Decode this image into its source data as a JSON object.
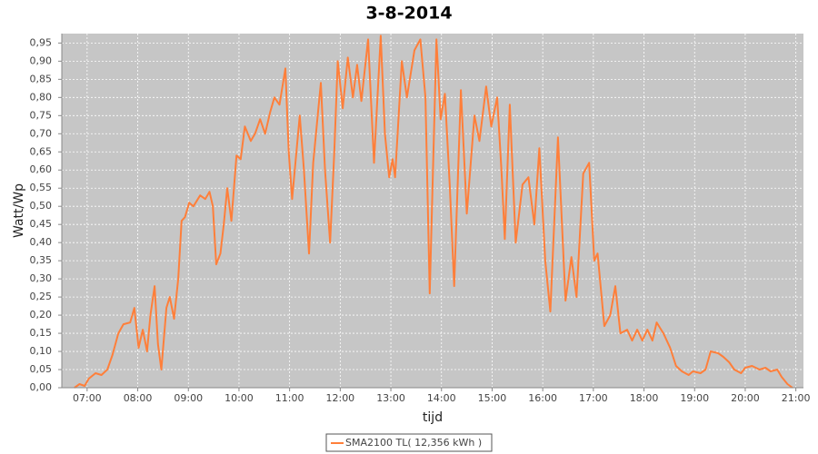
{
  "chart_data": {
    "type": "line",
    "title": "3-8-2014",
    "x_label": "tijd",
    "y_label": "Watt/Wp",
    "xlim": [
      "06:30",
      "21:09"
    ],
    "xticks": [
      "07:00",
      "08:00",
      "09:00",
      "10:00",
      "11:00",
      "12:00",
      "13:00",
      "14:00",
      "15:00",
      "16:00",
      "17:00",
      "18:00",
      "19:00",
      "20:00",
      "21:00"
    ],
    "ylim": [
      0,
      0.976
    ],
    "yticks": [
      {
        "value": 0,
        "label": "0,00"
      },
      {
        "value": 0.05,
        "label": "0,05"
      },
      {
        "value": 0.1,
        "label": "0,10"
      },
      {
        "value": 0.15,
        "label": "0,15"
      },
      {
        "value": 0.2,
        "label": "0,20"
      },
      {
        "value": 0.25,
        "label": "0,25"
      },
      {
        "value": 0.3,
        "label": "0,30"
      },
      {
        "value": 0.35,
        "label": "0,35"
      },
      {
        "value": 0.4,
        "label": "0,40"
      },
      {
        "value": 0.45,
        "label": "0,45"
      },
      {
        "value": 0.5,
        "label": "0,50"
      },
      {
        "value": 0.55,
        "label": "0,55"
      },
      {
        "value": 0.6,
        "label": "0,60"
      },
      {
        "value": 0.65,
        "label": "0,65"
      },
      {
        "value": 0.7,
        "label": "0,70"
      },
      {
        "value": 0.75,
        "label": "0,75"
      },
      {
        "value": 0.8,
        "label": "0,80"
      },
      {
        "value": 0.85,
        "label": "0,85"
      },
      {
        "value": 0.9,
        "label": "0,90"
      },
      {
        "value": 0.95,
        "label": "0,95"
      }
    ],
    "grid": true,
    "x": [
      "06:45",
      "06:51",
      "06:57",
      "07:02",
      "07:10",
      "07:17",
      "07:24",
      "07:30",
      "07:37",
      "07:43",
      "07:51",
      "07:56",
      "08:01",
      "08:06",
      "08:11",
      "08:15",
      "08:20",
      "08:24",
      "08:28",
      "08:34",
      "08:38",
      "08:43",
      "08:48",
      "08:52",
      "08:56",
      "09:01",
      "09:06",
      "09:14",
      "09:20",
      "09:25",
      "09:29",
      "09:33",
      "09:38",
      "09:42",
      "09:46",
      "09:51",
      "09:57",
      "10:02",
      "10:07",
      "10:14",
      "10:19",
      "10:25",
      "10:31",
      "10:37",
      "10:42",
      "10:48",
      "10:55",
      "10:59",
      "11:03",
      "11:12",
      "11:17",
      "11:23",
      "11:28",
      "11:37",
      "11:42",
      "11:48",
      "11:53",
      "11:57",
      "12:03",
      "12:09",
      "12:15",
      "12:20",
      "12:25",
      "12:33",
      "12:40",
      "12:48",
      "12:53",
      "12:58",
      "13:02",
      "13:05",
      "13:13",
      "13:19",
      "13:28",
      "13:35",
      "13:41",
      "13:46",
      "13:54",
      "13:59",
      "14:04",
      "14:10",
      "14:15",
      "14:23",
      "14:30",
      "14:39",
      "14:45",
      "14:53",
      "14:59",
      "15:06",
      "15:11",
      "15:15",
      "15:21",
      "15:28",
      "15:36",
      "15:43",
      "15:50",
      "15:56",
      "16:03",
      "16:09",
      "16:18",
      "16:27",
      "16:34",
      "16:40",
      "16:48",
      "16:55",
      "17:01",
      "17:05",
      "17:13",
      "17:20",
      "17:26",
      "17:32",
      "17:40",
      "17:46",
      "17:52",
      "17:58",
      "18:04",
      "18:10",
      "18:15",
      "18:23",
      "18:31",
      "18:38",
      "18:45",
      "18:53",
      "18:58",
      "19:07",
      "19:13",
      "19:19",
      "19:28",
      "19:34",
      "19:41",
      "19:47",
      "19:55",
      "20:00",
      "20:08",
      "20:17",
      "20:24",
      "20:30",
      "20:38",
      "20:43",
      "20:50",
      "20:56"
    ],
    "series": [
      {
        "name": "SMA2100 TL( 12,356 kWh )",
        "color": "#ff7f3a",
        "values": [
          0,
          0.01,
          0.005,
          0.025,
          0.04,
          0.035,
          0.05,
          0.09,
          0.15,
          0.175,
          0.18,
          0.22,
          0.11,
          0.16,
          0.1,
          0.2,
          0.28,
          0.12,
          0.05,
          0.22,
          0.25,
          0.19,
          0.3,
          0.46,
          0.47,
          0.51,
          0.5,
          0.53,
          0.52,
          0.54,
          0.5,
          0.34,
          0.37,
          0.45,
          0.55,
          0.46,
          0.64,
          0.63,
          0.72,
          0.68,
          0.7,
          0.74,
          0.7,
          0.76,
          0.8,
          0.78,
          0.88,
          0.65,
          0.52,
          0.75,
          0.6,
          0.37,
          0.62,
          0.84,
          0.6,
          0.4,
          0.65,
          0.9,
          0.77,
          0.91,
          0.8,
          0.89,
          0.79,
          0.96,
          0.62,
          0.97,
          0.7,
          0.58,
          0.63,
          0.58,
          0.9,
          0.8,
          0.93,
          0.96,
          0.8,
          0.26,
          0.96,
          0.74,
          0.81,
          0.55,
          0.28,
          0.82,
          0.48,
          0.75,
          0.68,
          0.83,
          0.72,
          0.8,
          0.6,
          0.41,
          0.78,
          0.4,
          0.56,
          0.58,
          0.45,
          0.66,
          0.35,
          0.21,
          0.69,
          0.24,
          0.36,
          0.25,
          0.59,
          0.62,
          0.35,
          0.37,
          0.17,
          0.2,
          0.28,
          0.15,
          0.16,
          0.13,
          0.16,
          0.13,
          0.16,
          0.13,
          0.18,
          0.15,
          0.11,
          0.06,
          0.045,
          0.035,
          0.045,
          0.04,
          0.05,
          0.1,
          0.095,
          0.085,
          0.07,
          0.05,
          0.04,
          0.055,
          0.06,
          0.05,
          0.055,
          0.045,
          0.05,
          0.03,
          0.01,
          0
        ]
      }
    ]
  }
}
